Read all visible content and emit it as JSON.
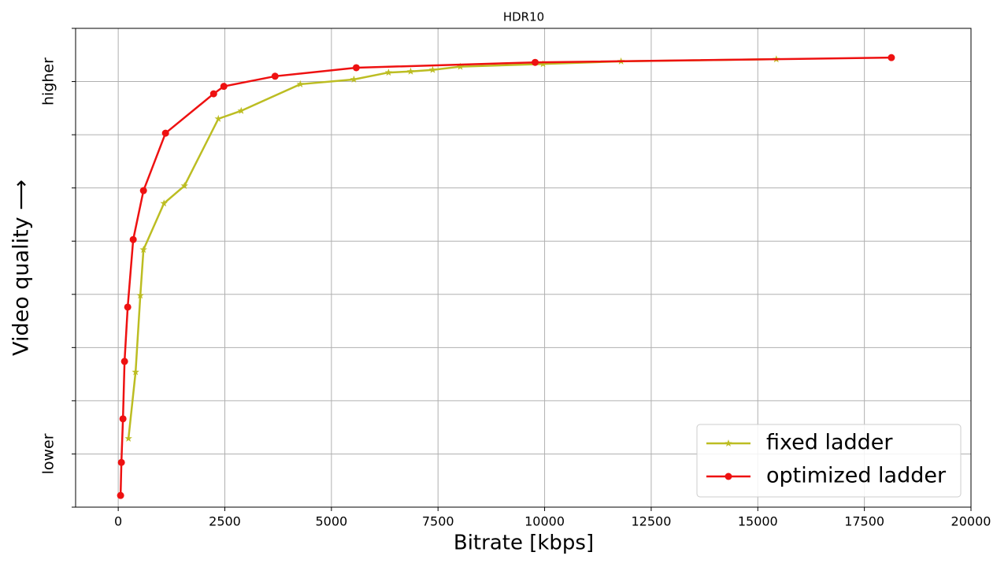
{
  "chart_data": {
    "type": "line",
    "title": "HDR10",
    "xlabel": "Bitrate [kbps]",
    "ylabel": "Video quality ⟶",
    "xlim": [
      -1000,
      20000
    ],
    "xticks": [
      0,
      2500,
      5000,
      7500,
      10000,
      12500,
      15000,
      17500,
      20000
    ],
    "ylim": [
      0,
      9
    ],
    "yticks": [
      {
        "value": 0,
        "label": null
      },
      {
        "value": 1,
        "label": "lower"
      },
      {
        "value": 2,
        "label": null
      },
      {
        "value": 3,
        "label": null
      },
      {
        "value": 4,
        "label": null
      },
      {
        "value": 5,
        "label": null
      },
      {
        "value": 6,
        "label": null
      },
      {
        "value": 7,
        "label": null
      },
      {
        "value": 8,
        "label": "higher"
      },
      {
        "value": 9,
        "label": null
      }
    ],
    "grid": true,
    "legend": "lower right",
    "series": [
      {
        "name": "fixed ladder",
        "color": "#bcbd22",
        "marker": "star",
        "x": [
          240,
          407,
          518,
          592,
          1072,
          1553,
          2348,
          2884,
          4270,
          5527,
          6340,
          6858,
          7375,
          8022,
          9963,
          11793,
          15434
        ],
        "values": [
          1.29,
          2.54,
          3.98,
          4.84,
          5.71,
          6.04,
          7.3,
          7.45,
          7.95,
          8.04,
          8.17,
          8.19,
          8.22,
          8.28,
          8.33,
          8.38,
          8.42
        ]
      },
      {
        "name": "optimized ladder",
        "color": "#ee1111",
        "marker": "circle",
        "x": [
          55,
          74,
          111,
          148,
          222,
          351,
          592,
          1109,
          2237,
          2477,
          3678,
          5582,
          9778,
          18133
        ],
        "values": [
          0.22,
          0.84,
          1.66,
          2.74,
          3.76,
          5.03,
          5.95,
          7.03,
          7.77,
          7.91,
          8.1,
          8.26,
          8.36,
          8.45
        ]
      }
    ]
  }
}
